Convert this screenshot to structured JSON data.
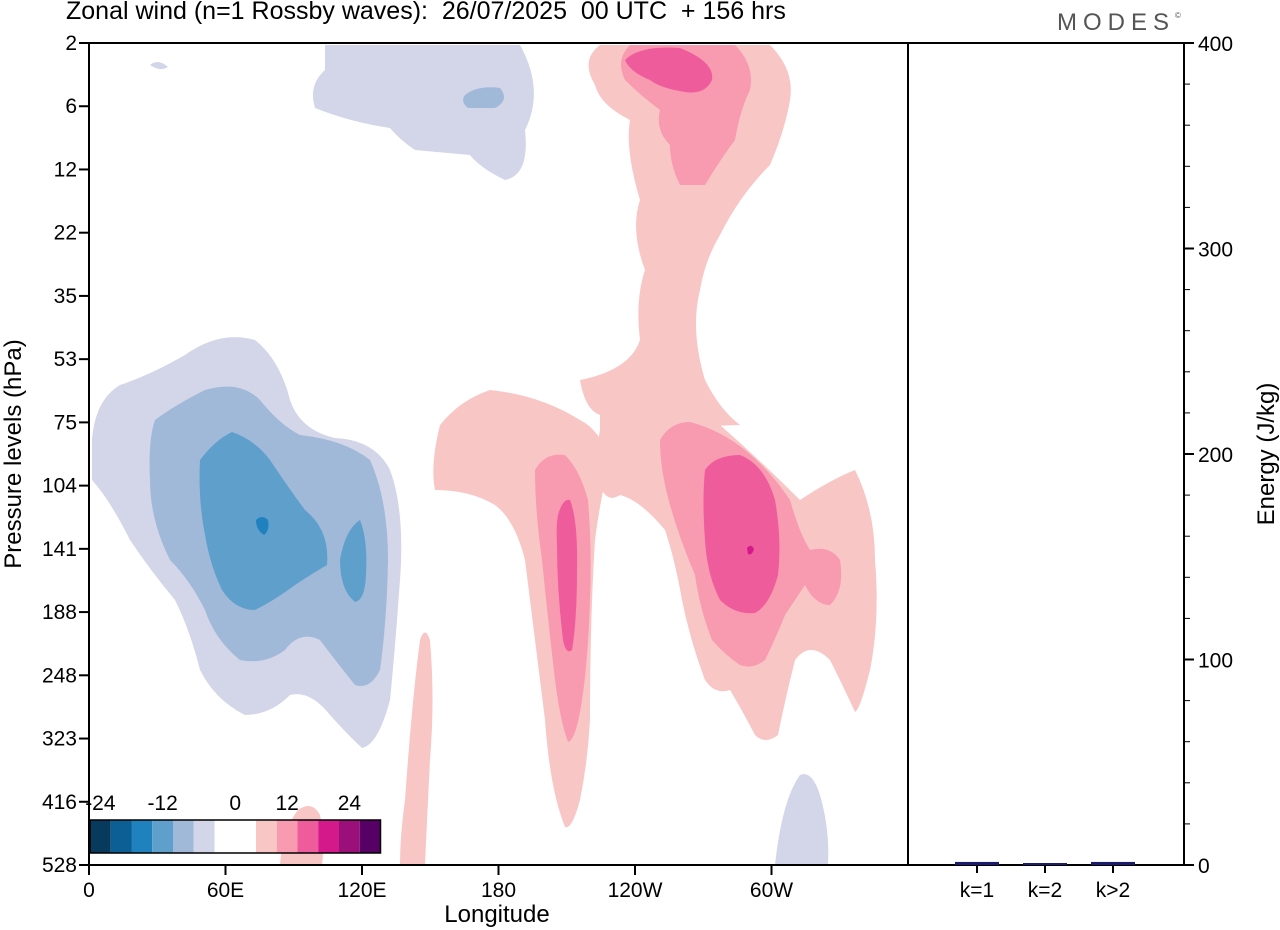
{
  "title": "Zonal wind (n=1 Rossby waves):  26/07/2025  00 UTC  + 156 hrs",
  "logo": "MODES",
  "colors": {
    "level_m24": "#073a5c",
    "level_m20": "#0b5f94",
    "level_m16": "#1f82bf",
    "level_m12": "#5f9fcb",
    "level_m8": "#a0b9d9",
    "level_m4": "#d3d5e8",
    "level_0": "#ffffff",
    "level_p4": "#f9c6c6",
    "level_p8": "#f89ab0",
    "level_p12": "#ef5c9c",
    "level_p16": "#d41a8a",
    "level_p20": "#9a0f7a",
    "level_p24": "#560066",
    "bar": "#1a1a6e"
  },
  "chart_data": [
    {
      "type": "contour",
      "title": "Zonal wind (n=1 Rossby waves)",
      "xlabel": "Longitude",
      "ylabel": "Pressure levels (hPa)",
      "x_ticks": [
        "0",
        "60E",
        "120E",
        "180",
        "120W",
        "60W"
      ],
      "y_ticks": [
        "2",
        "6",
        "12",
        "22",
        "35",
        "53",
        "75",
        "104",
        "141",
        "188",
        "248",
        "323",
        "416",
        "528"
      ],
      "colorbar": {
        "tick_labels": [
          "-24",
          "-12",
          "0",
          "12",
          "24"
        ],
        "levels": [
          -24,
          -20,
          -16,
          -12,
          -8,
          -4,
          0,
          4,
          8,
          12,
          16,
          20,
          24
        ]
      },
      "features": [
        {
          "name": "upper easterly patch",
          "sign": "negative",
          "lon_range": [
            100,
            190
          ],
          "pressure_range": [
            2,
            12
          ],
          "peak": -8
        },
        {
          "name": "upper westerly jet",
          "sign": "positive",
          "lon_range": [
            220,
            285
          ],
          "pressure_range": [
            2,
            12
          ],
          "peak": 12
        },
        {
          "name": "westerly column",
          "sign": "positive",
          "lon_range": [
            225,
            260
          ],
          "pressure_range": [
            12,
            75
          ],
          "peak": 4
        },
        {
          "name": "mid-level easterlies",
          "sign": "negative",
          "lon_range": [
            0,
            130
          ],
          "pressure_range": [
            53,
            323
          ],
          "peak": -16
        },
        {
          "name": "western westerly lobe",
          "sign": "positive",
          "lon_range": [
            148,
            215
          ],
          "pressure_range": [
            75,
            416
          ],
          "peak": 12
        },
        {
          "name": "eastern westerly lobe",
          "sign": "positive",
          "lon_range": [
            240,
            330
          ],
          "pressure_range": [
            75,
            323
          ],
          "peak": 12
        },
        {
          "name": "low-level westerly strand",
          "sign": "positive",
          "lon_range": [
            136,
            148
          ],
          "pressure_range": [
            188,
            528
          ],
          "peak": 4
        },
        {
          "name": "surface westerly blob",
          "sign": "positive",
          "lon_range": [
            85,
            105
          ],
          "pressure_range": [
            416,
            528
          ],
          "peak": 4
        },
        {
          "name": "surface easterly blob",
          "sign": "negative",
          "lon_range": [
            300,
            325
          ],
          "pressure_range": [
            416,
            528
          ],
          "peak": -4
        }
      ]
    },
    {
      "type": "bar",
      "ylabel": "Energy (J/kg)",
      "ylim": [
        0,
        400
      ],
      "y_ticks": [
        "0",
        "100",
        "200",
        "300",
        "400"
      ],
      "categories": [
        "k=1",
        "k=2",
        "k>2"
      ],
      "values": [
        1,
        0.3,
        1
      ]
    }
  ]
}
